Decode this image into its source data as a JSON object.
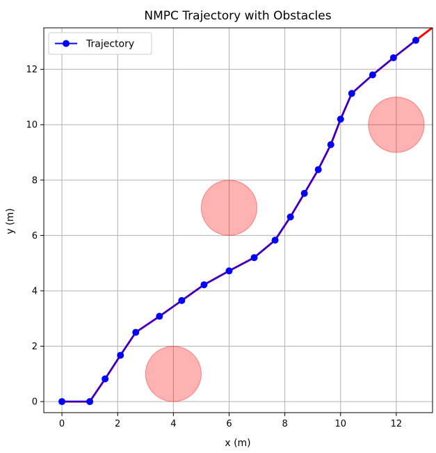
{
  "chart_data": {
    "type": "line",
    "title": "NMPC Trajectory with Obstacles",
    "xlabel": "x (m)",
    "ylabel": "y (m)",
    "xlim": [
      -0.65,
      13.3
    ],
    "ylim": [
      -0.4,
      13.5
    ],
    "xticks": [
      0,
      2,
      4,
      6,
      8,
      10,
      12
    ],
    "yticks": [
      0,
      2,
      4,
      6,
      8,
      10,
      12
    ],
    "grid": true,
    "legend_position": "top-left",
    "series": [
      {
        "name": "Trajectory",
        "color": "#0000ff",
        "marker": "circle",
        "x": [
          0.0,
          1.0,
          1.55,
          2.1,
          2.65,
          3.5,
          4.3,
          5.1,
          6.0,
          6.9,
          7.65,
          8.2,
          8.7,
          9.2,
          9.65,
          10.0,
          10.4,
          11.15,
          11.9,
          12.7
        ],
        "y": [
          0.0,
          0.0,
          0.82,
          1.67,
          2.5,
          3.08,
          3.65,
          4.22,
          4.72,
          5.2,
          5.83,
          6.67,
          7.52,
          8.38,
          9.28,
          10.2,
          11.13,
          11.8,
          12.42,
          13.05
        ]
      }
    ],
    "heading_arrows": {
      "color": "#ff0000",
      "end": [
        13.35,
        13.55
      ]
    },
    "obstacles": {
      "color": "#ff0000",
      "opacity": 0.3,
      "items": [
        {
          "cx": 4,
          "cy": 1,
          "r": 1
        },
        {
          "cx": 6,
          "cy": 7,
          "r": 1
        },
        {
          "cx": 12,
          "cy": 10,
          "r": 1
        }
      ]
    }
  }
}
